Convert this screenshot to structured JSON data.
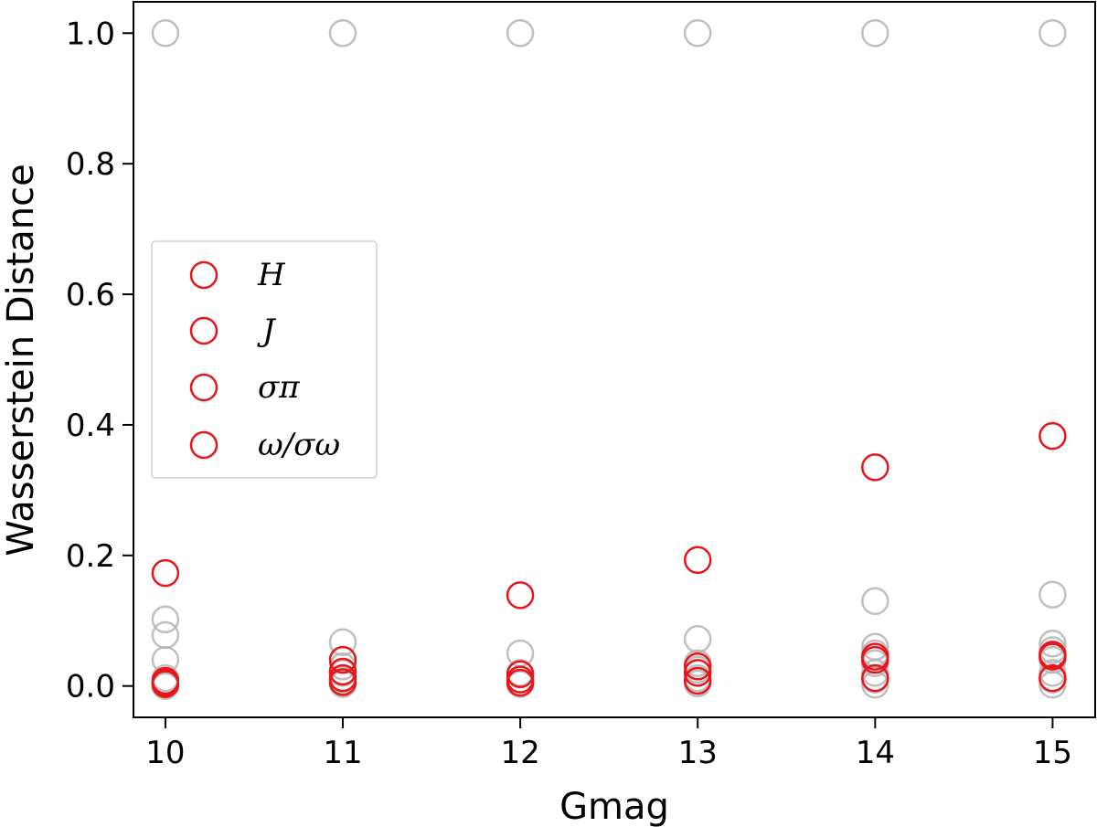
{
  "chart_data": {
    "type": "scatter",
    "xlabel": "Gmag",
    "ylabel": "Wasserstein Distance",
    "xlim": [
      9.82,
      15.24
    ],
    "ylim": [
      -0.048,
      1.048
    ],
    "x_ticks": [
      10,
      11,
      12,
      13,
      14,
      15
    ],
    "x_tick_labels": [
      "10",
      "11",
      "12",
      "13",
      "14",
      "15"
    ],
    "y_ticks": [
      0.0,
      0.2,
      0.4,
      0.6,
      0.8,
      1.0
    ],
    "y_tick_labels": [
      "0.0",
      "0.2",
      "0.4",
      "0.6",
      "0.8",
      "1.0"
    ],
    "grid": false,
    "legend_position": "center-left",
    "marker": "open-circle",
    "colors": {
      "highlight": "#e8161b",
      "background": "#b4b4b4"
    },
    "legend": [
      {
        "label": "H",
        "color": "#e8161b"
      },
      {
        "label": "J",
        "color": "#e8161b"
      },
      {
        "label": "σπ",
        "color": "#e8161b"
      },
      {
        "label": "ω/σω",
        "color": "#e8161b"
      }
    ],
    "series": [
      {
        "color": "#b4b4b4",
        "points": [
          {
            "x": 10,
            "y": 1.0
          },
          {
            "x": 10,
            "y": 0.102
          },
          {
            "x": 10,
            "y": 0.078
          },
          {
            "x": 10,
            "y": 0.04
          },
          {
            "x": 10,
            "y": 0.012
          },
          {
            "x": 10,
            "y": 0.004
          },
          {
            "x": 10,
            "y": 0.0
          },
          {
            "x": 11,
            "y": 1.0
          },
          {
            "x": 11,
            "y": 0.067
          },
          {
            "x": 11,
            "y": 0.03
          },
          {
            "x": 11,
            "y": 0.02
          },
          {
            "x": 11,
            "y": 0.01
          },
          {
            "x": 11,
            "y": 0.003
          },
          {
            "x": 12,
            "y": 1.0
          },
          {
            "x": 12,
            "y": 0.05
          },
          {
            "x": 12,
            "y": 0.02
          },
          {
            "x": 12,
            "y": 0.01
          },
          {
            "x": 12,
            "y": 0.003
          },
          {
            "x": 13,
            "y": 1.0
          },
          {
            "x": 13,
            "y": 0.072
          },
          {
            "x": 13,
            "y": 0.035
          },
          {
            "x": 13,
            "y": 0.025
          },
          {
            "x": 13,
            "y": 0.012
          },
          {
            "x": 13,
            "y": 0.004
          },
          {
            "x": 14,
            "y": 1.0
          },
          {
            "x": 14,
            "y": 0.13
          },
          {
            "x": 14,
            "y": 0.06
          },
          {
            "x": 14,
            "y": 0.05
          },
          {
            "x": 14,
            "y": 0.035
          },
          {
            "x": 14,
            "y": 0.02
          },
          {
            "x": 14,
            "y": 0.01
          },
          {
            "x": 14,
            "y": 0.002
          },
          {
            "x": 15,
            "y": 1.0
          },
          {
            "x": 15,
            "y": 0.14
          },
          {
            "x": 15,
            "y": 0.065
          },
          {
            "x": 15,
            "y": 0.055
          },
          {
            "x": 15,
            "y": 0.04
          },
          {
            "x": 15,
            "y": 0.02
          },
          {
            "x": 15,
            "y": 0.01
          },
          {
            "x": 15,
            "y": 0.002
          }
        ]
      },
      {
        "color": "#e8161b",
        "points": [
          {
            "x": 10,
            "y": 0.173
          },
          {
            "x": 10,
            "y": 0.008
          },
          {
            "x": 10,
            "y": 0.005
          },
          {
            "x": 10,
            "y": 0.003
          },
          {
            "x": 11,
            "y": 0.04
          },
          {
            "x": 11,
            "y": 0.022
          },
          {
            "x": 11,
            "y": 0.012
          },
          {
            "x": 11,
            "y": 0.006
          },
          {
            "x": 12,
            "y": 0.139
          },
          {
            "x": 12,
            "y": 0.018
          },
          {
            "x": 12,
            "y": 0.01
          },
          {
            "x": 12,
            "y": 0.005
          },
          {
            "x": 13,
            "y": 0.193
          },
          {
            "x": 13,
            "y": 0.03
          },
          {
            "x": 13,
            "y": 0.02
          },
          {
            "x": 13,
            "y": 0.008
          },
          {
            "x": 14,
            "y": 0.335
          },
          {
            "x": 14,
            "y": 0.045
          },
          {
            "x": 14,
            "y": 0.04
          },
          {
            "x": 14,
            "y": 0.012
          },
          {
            "x": 15,
            "y": 0.383
          },
          {
            "x": 15,
            "y": 0.048
          },
          {
            "x": 15,
            "y": 0.045
          },
          {
            "x": 15,
            "y": 0.012
          }
        ]
      }
    ]
  }
}
